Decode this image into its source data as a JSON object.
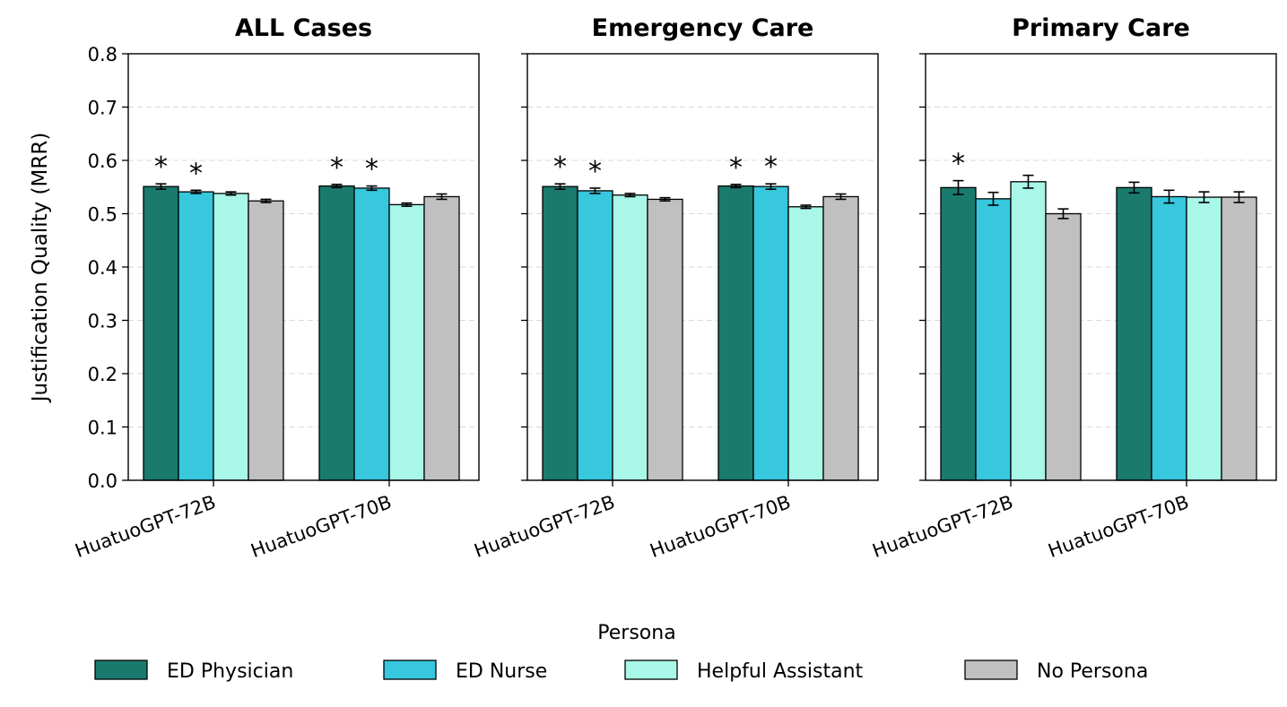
{
  "chart_data": [
    {
      "type": "bar",
      "title": "ALL Cases",
      "ylabel": "Justification Quality (MRR)",
      "ylim": [
        0,
        0.8
      ],
      "yticks": [
        "0.0",
        "0.1",
        "0.2",
        "0.3",
        "0.4",
        "0.5",
        "0.6",
        "0.7",
        "0.8"
      ],
      "categories": [
        "HuatuoGPT-72B",
        "HuatuoGPT-70B"
      ],
      "series": [
        {
          "name": "ED Physician",
          "values": [
            0.551,
            0.552
          ],
          "errors": [
            0.005,
            0.003
          ],
          "significant": [
            true,
            true
          ]
        },
        {
          "name": "ED Nurse",
          "values": [
            0.541,
            0.548
          ],
          "errors": [
            0.003,
            0.004
          ],
          "significant": [
            true,
            true
          ]
        },
        {
          "name": "Helpful Assistant",
          "values": [
            0.538,
            0.517
          ],
          "errors": [
            0.003,
            0.003
          ],
          "significant": [
            false,
            false
          ]
        },
        {
          "name": "No Persona",
          "values": [
            0.524,
            0.532
          ],
          "errors": [
            0.003,
            0.005
          ],
          "significant": [
            false,
            false
          ]
        }
      ]
    },
    {
      "type": "bar",
      "title": "Emergency Care",
      "ylim": [
        0,
        0.8
      ],
      "categories": [
        "HuatuoGPT-72B",
        "HuatuoGPT-70B"
      ],
      "series": [
        {
          "name": "ED Physician",
          "values": [
            0.551,
            0.552
          ],
          "errors": [
            0.005,
            0.003
          ],
          "significant": [
            true,
            true
          ]
        },
        {
          "name": "ED Nurse",
          "values": [
            0.543,
            0.551
          ],
          "errors": [
            0.005,
            0.005
          ],
          "significant": [
            true,
            true
          ]
        },
        {
          "name": "Helpful Assistant",
          "values": [
            0.535,
            0.513
          ],
          "errors": [
            0.003,
            0.003
          ],
          "significant": [
            false,
            false
          ]
        },
        {
          "name": "No Persona",
          "values": [
            0.527,
            0.532
          ],
          "errors": [
            0.003,
            0.005
          ],
          "significant": [
            false,
            false
          ]
        }
      ]
    },
    {
      "type": "bar",
      "title": "Primary Care",
      "ylim": [
        0,
        0.8
      ],
      "categories": [
        "HuatuoGPT-72B",
        "HuatuoGPT-70B"
      ],
      "series": [
        {
          "name": "ED Physician",
          "values": [
            0.549,
            0.549
          ],
          "errors": [
            0.013,
            0.01
          ],
          "significant": [
            true,
            false
          ]
        },
        {
          "name": "ED Nurse",
          "values": [
            0.528,
            0.532
          ],
          "errors": [
            0.012,
            0.012
          ],
          "significant": [
            false,
            false
          ]
        },
        {
          "name": "Helpful Assistant",
          "values": [
            0.56,
            0.531
          ],
          "errors": [
            0.012,
            0.01
          ],
          "significant": [
            false,
            false
          ]
        },
        {
          "name": "No Persona",
          "values": [
            0.5,
            0.531
          ],
          "errors": [
            0.009,
            0.01
          ],
          "significant": [
            false,
            false
          ]
        }
      ]
    }
  ],
  "legend": {
    "title": "Persona",
    "items": [
      {
        "label": "ED Physician",
        "color": "#1a7a6e"
      },
      {
        "label": "ED Nurse",
        "color": "#37c8de"
      },
      {
        "label": "Helpful Assistant",
        "color": "#a8f7e8"
      },
      {
        "label": "No Persona",
        "color": "#c0c0c0"
      }
    ]
  },
  "significance_marker": "*"
}
